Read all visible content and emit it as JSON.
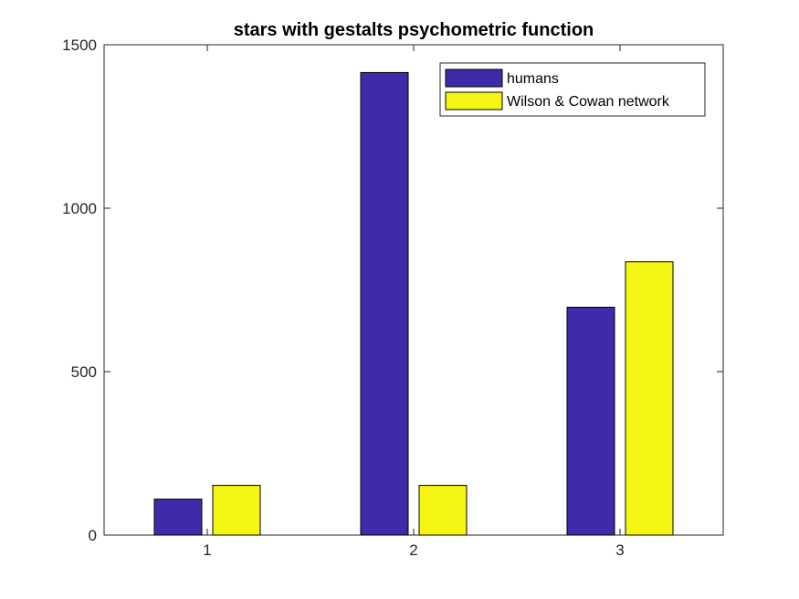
{
  "chart_data": {
    "type": "bar",
    "title": "stars with gestalts psychometric function",
    "xlabel": "",
    "ylabel": "",
    "categories": [
      "1",
      "2",
      "3"
    ],
    "ylim": [
      0,
      1500
    ],
    "yticks": [
      "0",
      "500",
      "1000",
      "1500"
    ],
    "grid": false,
    "legend_position": "top-right",
    "series": [
      {
        "name": "humans",
        "color": "#3f2aaa",
        "values": [
          110,
          1415,
          697
        ]
      },
      {
        "name": "Wilson & Cowan network",
        "color": "#f5f514",
        "values": [
          152,
          152,
          836
        ]
      }
    ]
  }
}
